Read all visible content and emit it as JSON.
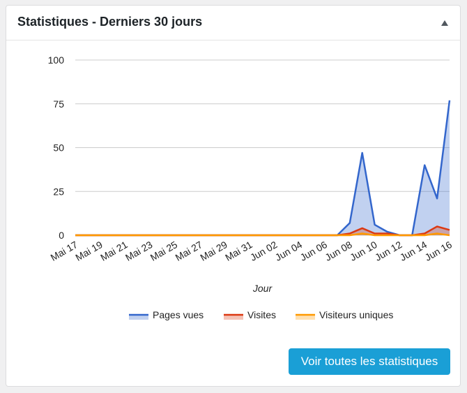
{
  "header": {
    "title": "Statistiques - Derniers 30 jours"
  },
  "chart_data": {
    "type": "area",
    "categories": [
      "Mai 17",
      null,
      "Mai 19",
      null,
      "Mai 21",
      null,
      "Mai 23",
      null,
      "Mai 25",
      null,
      "Mai 27",
      null,
      "Mai 29",
      null,
      "Mai 31",
      null,
      "Jun 02",
      null,
      "Jun 04",
      null,
      "Jun 06",
      null,
      "Jun 08",
      null,
      "Jun 10",
      null,
      "Jun 12",
      null,
      "Jun 14",
      null,
      "Jun 16"
    ],
    "series": [
      {
        "name": "Pages vues",
        "color": "#3366cc",
        "values": [
          0,
          0,
          0,
          0,
          0,
          0,
          0,
          0,
          0,
          0,
          0,
          0,
          0,
          0,
          0,
          0,
          0,
          0,
          0,
          0,
          0,
          0,
          7,
          47,
          6,
          2,
          0,
          0,
          40,
          21,
          77
        ]
      },
      {
        "name": "Visites",
        "color": "#dc3912",
        "values": [
          0,
          0,
          0,
          0,
          0,
          0,
          0,
          0,
          0,
          0,
          0,
          0,
          0,
          0,
          0,
          0,
          0,
          0,
          0,
          0,
          0,
          0,
          1,
          4,
          1,
          1,
          0,
          0,
          1,
          5,
          3
        ]
      },
      {
        "name": "Visiteurs uniques",
        "color": "#ff9900",
        "values": [
          0,
          0,
          0,
          0,
          0,
          0,
          0,
          0,
          0,
          0,
          0,
          0,
          0,
          0,
          0,
          0,
          0,
          0,
          0,
          0,
          0,
          0,
          0,
          1,
          0,
          0,
          0,
          0,
          0,
          1,
          0
        ]
      }
    ],
    "ylim": [
      0,
      100
    ],
    "yticks": [
      0,
      25,
      50,
      75,
      100
    ],
    "grid": true,
    "x_label": "Jour"
  },
  "button": {
    "label": "Voir toutes les statistiques"
  }
}
